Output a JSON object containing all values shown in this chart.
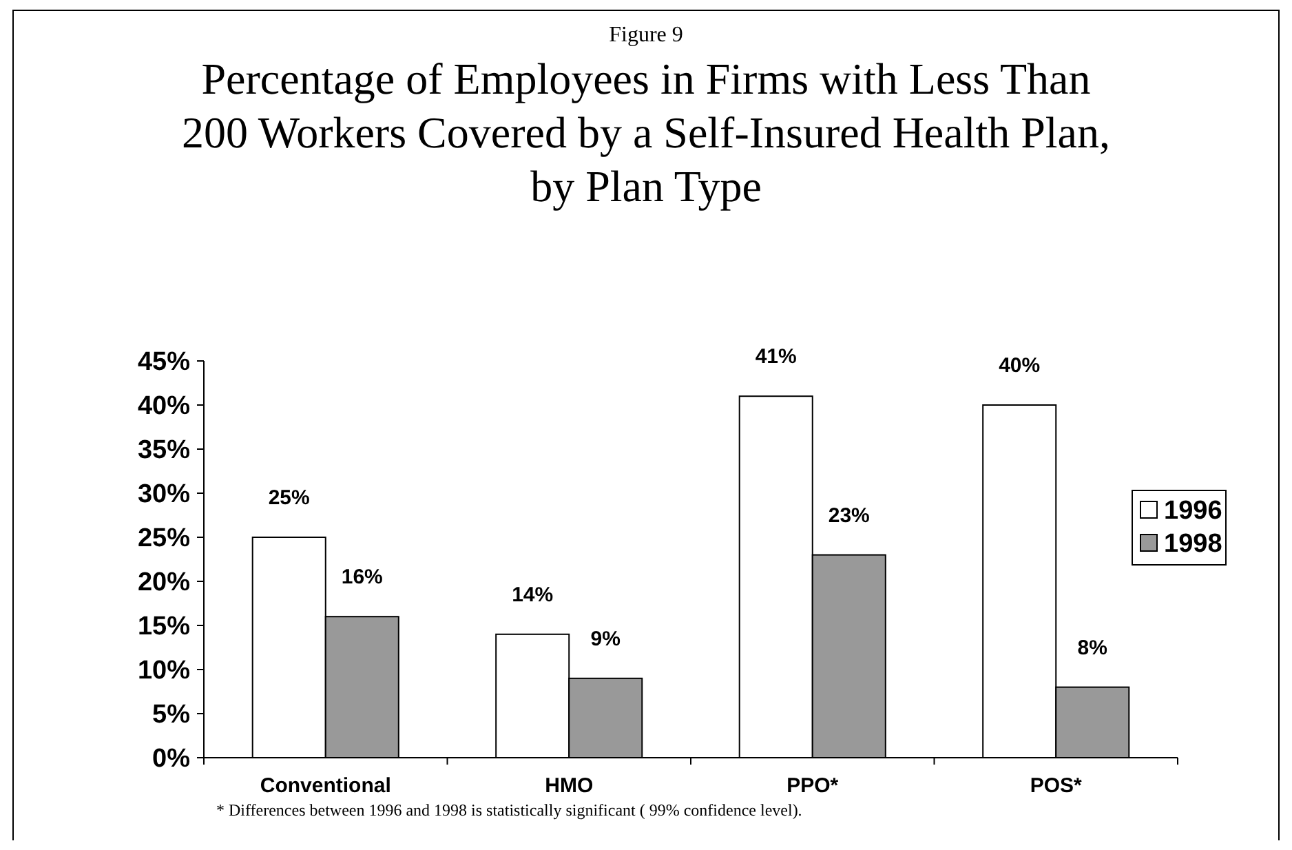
{
  "chart_data": {
    "type": "bar",
    "subtitle": "Figure 9",
    "title": "Percentage of Employees in Firms with Less Than 200 Workers Covered by a Self-Insured Health Plan, by Plan Type",
    "categories": [
      "Conventional",
      "HMO",
      "PPO*",
      "POS*"
    ],
    "series": [
      {
        "name": "1996",
        "color": "#ffffff",
        "values": [
          25,
          14,
          41,
          40
        ],
        "value_labels": [
          "25%",
          "14%",
          "41%",
          "40%"
        ]
      },
      {
        "name": "1998",
        "color": "#999999",
        "values": [
          16,
          9,
          23,
          8
        ],
        "value_labels": [
          "16%",
          "9%",
          "23%",
          "8%"
        ]
      }
    ],
    "ylim": [
      0,
      45
    ],
    "yticks": [
      {
        "value": 0,
        "label": "0%"
      },
      {
        "value": 5,
        "label": "5%"
      },
      {
        "value": 10,
        "label": "10%"
      },
      {
        "value": 15,
        "label": "15%"
      },
      {
        "value": 20,
        "label": "20%"
      },
      {
        "value": 25,
        "label": "25%"
      },
      {
        "value": 30,
        "label": "30%"
      },
      {
        "value": 35,
        "label": "35%"
      },
      {
        "value": 40,
        "label": "40%"
      },
      {
        "value": 45,
        "label": "45%"
      }
    ],
    "grid": false,
    "legend": "right",
    "annotations": [
      "* Differences between 1996 and 1998 is statistically significant ( 99% confidence level)."
    ]
  }
}
